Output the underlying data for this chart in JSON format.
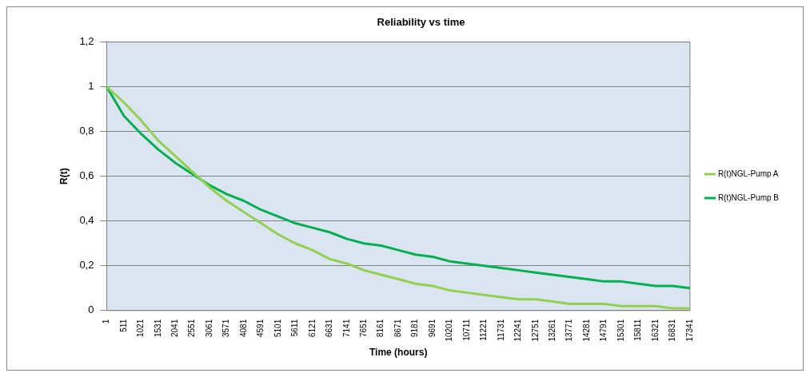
{
  "chart_data": {
    "type": "line",
    "title": "Reliability vs time",
    "xlabel": "Time (hours)",
    "ylabel": "R(t)",
    "categories": [
      "1",
      "511",
      "1021",
      "1531",
      "2041",
      "2551",
      "3061",
      "3571",
      "4081",
      "4591",
      "5101",
      "5611",
      "6121",
      "6631",
      "7141",
      "7651",
      "8161",
      "8671",
      "9181",
      "9691",
      "10201",
      "10711",
      "11221",
      "11731",
      "12241",
      "12751",
      "13261",
      "13771",
      "14281",
      "14791",
      "15301",
      "15811",
      "16321",
      "16831",
      "17341"
    ],
    "series": [
      {
        "name": "R(t)NGL-Pump A",
        "color": "#92d050",
        "values": [
          1,
          0.93,
          0.85,
          0.76,
          0.69,
          0.62,
          0.55,
          0.49,
          0.44,
          0.39,
          0.34,
          0.3,
          0.27,
          0.23,
          0.21,
          0.18,
          0.16,
          0.14,
          0.12,
          0.11,
          0.09,
          0.08,
          0.07,
          0.06,
          0.05,
          0.05,
          0.04,
          0.03,
          0.03,
          0.03,
          0.02,
          0.02,
          0.02,
          0.01,
          0.01
        ]
      },
      {
        "name": "R(t)NGL-Pump B",
        "color": "#00b050",
        "values": [
          1,
          0.87,
          0.79,
          0.72,
          0.66,
          0.61,
          0.56,
          0.52,
          0.49,
          0.45,
          0.42,
          0.39,
          0.37,
          0.35,
          0.32,
          0.3,
          0.29,
          0.27,
          0.25,
          0.24,
          0.22,
          0.21,
          0.2,
          0.19,
          0.18,
          0.17,
          0.16,
          0.15,
          0.14,
          0.13,
          0.13,
          0.12,
          0.11,
          0.11,
          0.1
        ]
      }
    ],
    "ylim": [
      0,
      1.2
    ],
    "yticks": [
      0,
      {
        "value": 0.2,
        "label": "0,2"
      },
      {
        "value": 0.4,
        "label": "0,4"
      },
      {
        "value": 0.6,
        "label": "0,6"
      },
      {
        "value": 0.8,
        "label": "0,8"
      },
      1,
      {
        "value": 1.2,
        "label": "1,2"
      }
    ],
    "grid": "y",
    "legend": "right",
    "marker": "none",
    "line_style": "solid"
  }
}
